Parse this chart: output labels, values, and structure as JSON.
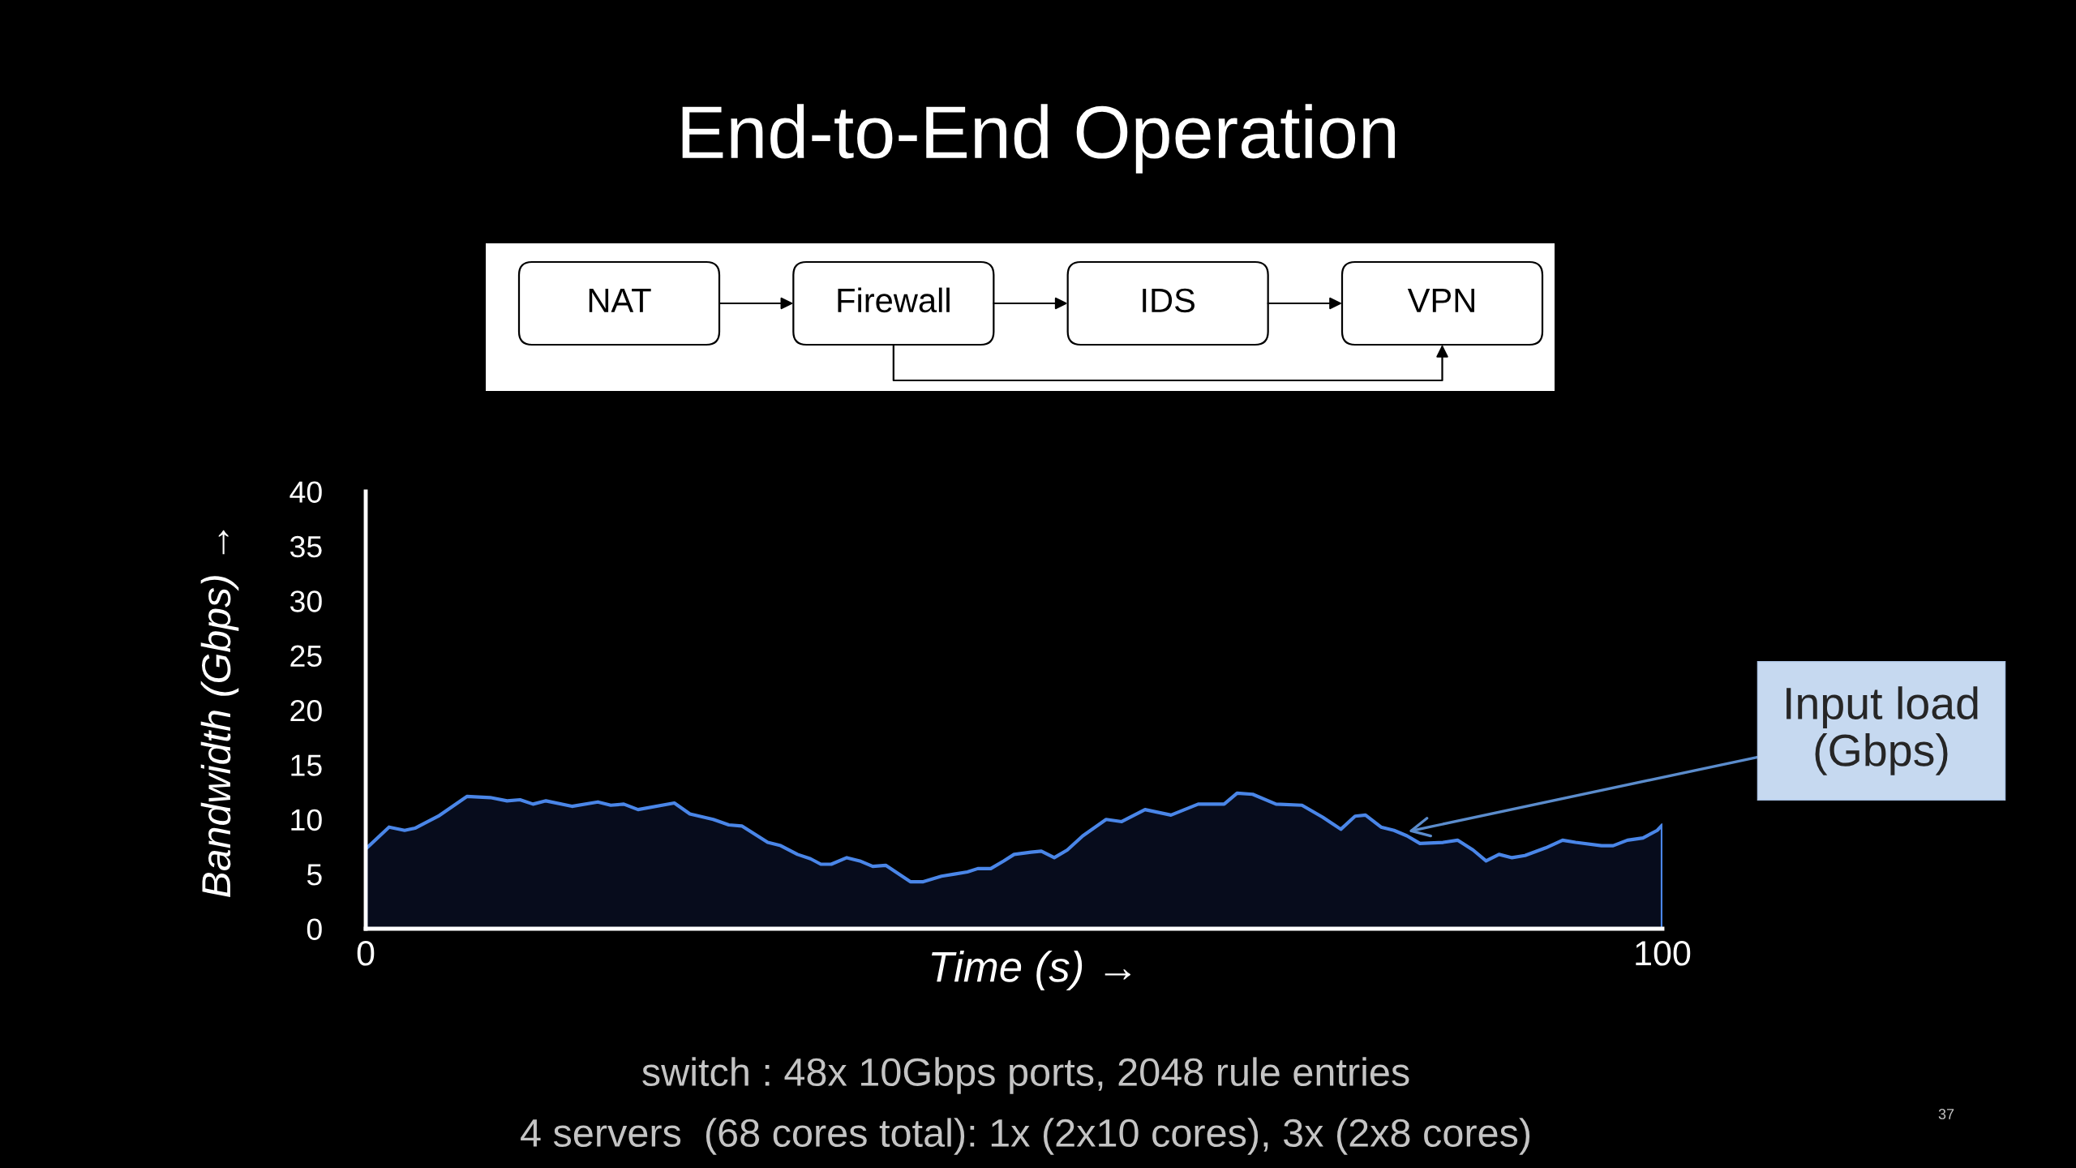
{
  "chart_data": [
    {
      "type": "other",
      "annotations": [
        "NAT",
        "Firewall",
        "IDS",
        "VPN"
      ]
    },
    {
      "type": "area",
      "title": "End-to-End Operation",
      "xlabel": "Time (s) →",
      "ylabel": "Bandwidth (Gbps) →",
      "x": [
        0,
        1.8,
        3.0,
        3.8,
        5.6,
        7.8,
        9.6,
        10.9,
        11.9,
        12.9,
        13.9,
        15.9,
        17.9,
        18.9,
        19.9,
        21.0,
        23.8,
        25.0,
        26.8,
        28.0,
        29.0,
        31.0,
        32.0,
        33.3,
        34.3,
        35.1,
        35.9,
        37.1,
        38.1,
        39.1,
        40.1,
        42.0,
        43.0,
        44.4,
        45.4,
        46.4,
        47.2,
        48.2,
        49.2,
        50.0,
        51.3,
        52.1,
        53.1,
        54.1,
        55.3,
        57.1,
        58.3,
        60.1,
        62.1,
        64.2,
        66.2,
        67.2,
        68.4,
        70.2,
        72.2,
        73.8,
        75.2,
        76.3,
        77.1,
        78.3,
        79.3,
        80.3,
        81.3,
        83.1,
        84.2,
        85.4,
        86.4,
        87.4,
        88.4,
        89.4,
        91.0,
        92.3,
        93.3,
        95.3,
        96.2,
        97.3,
        98.5,
        99.6,
        100
      ],
      "series": [
        {
          "color": "#4a86e8",
          "values": [
            7.3,
            9.3,
            9.0,
            9.2,
            10.3,
            12.1,
            12.0,
            11.7,
            11.8,
            11.4,
            11.7,
            11.2,
            11.6,
            11.3,
            11.4,
            10.9,
            11.5,
            10.5,
            10.0,
            9.5,
            9.4,
            7.9,
            7.6,
            6.8,
            6.4,
            5.9,
            5.9,
            6.5,
            6.2,
            5.7,
            5.8,
            4.3,
            4.3,
            4.8,
            5.0,
            5.2,
            5.5,
            5.5,
            6.2,
            6.8,
            7.0,
            7.1,
            6.5,
            7.2,
            8.5,
            10.0,
            9.8,
            10.9,
            10.4,
            11.4,
            11.4,
            12.4,
            12.3,
            11.4,
            11.3,
            10.2,
            9.1,
            10.3,
            10.4,
            9.3,
            9.0,
            8.5,
            7.8,
            7.9,
            8.1,
            7.2,
            6.2,
            6.8,
            6.5,
            6.7,
            7.4,
            8.1,
            7.9,
            7.6,
            7.6,
            8.1,
            8.3,
            9.0,
            9.5
          ]
        }
      ],
      "xlim": [
        0,
        100
      ],
      "xticks": [
        0,
        100
      ],
      "ylim": [
        0,
        40
      ],
      "yticks": [
        0,
        5,
        10,
        15,
        20,
        25,
        30,
        35,
        40
      ],
      "annotations": [
        {
          "text": "Input load\n(Gbps)",
          "x": 80.4,
          "y": 8.9
        },
        "switch : 48x 10Gbps ports, 2048 rule entries",
        "4 servers  (68 cores total): 1x (2x10 cores), 3x (2x8 cores)",
        "37"
      ]
    }
  ]
}
